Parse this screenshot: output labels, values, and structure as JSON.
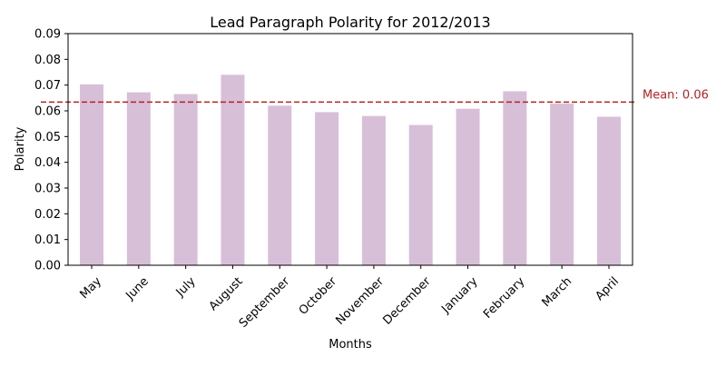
{
  "chart_data": {
    "type": "bar",
    "title": "Lead Paragraph Polarity for 2012/2013",
    "xlabel": "Months",
    "ylabel": "Polarity",
    "categories": [
      "May",
      "June",
      "July",
      "August",
      "September",
      "October",
      "November",
      "December",
      "January",
      "February",
      "March",
      "April"
    ],
    "values": [
      0.0703,
      0.0672,
      0.0665,
      0.074,
      0.062,
      0.0595,
      0.058,
      0.0545,
      0.0608,
      0.0676,
      0.0628,
      0.0577
    ],
    "ylim": [
      0,
      0.09
    ],
    "yticks": [
      "0.00",
      "0.01",
      "0.02",
      "0.03",
      "0.04",
      "0.05",
      "0.06",
      "0.07",
      "0.08",
      "0.09"
    ],
    "mean_line": {
      "value": 0.0634,
      "label": "Mean: 0.06",
      "color": "#b22222",
      "style": "dashed"
    },
    "bar_color": "#d8bfd8",
    "grid": false,
    "legend": "none"
  }
}
